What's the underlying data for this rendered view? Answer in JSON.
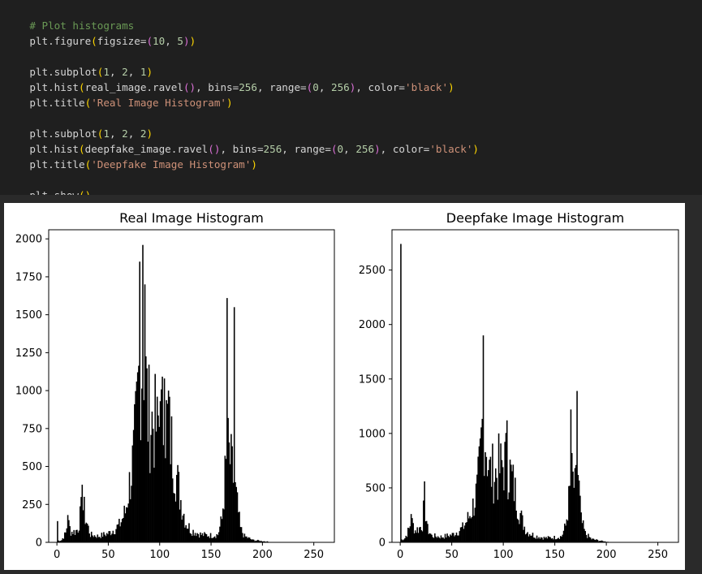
{
  "code": {
    "comment": "# Plot histograms",
    "line_figure": [
      "plt.figure",
      "(",
      "figsize=",
      "(",
      "10",
      ", ",
      "5",
      ")",
      ")"
    ],
    "line_subplot1": [
      "plt.subplot",
      "(",
      "1",
      ", ",
      "2",
      ", ",
      "1",
      ")"
    ],
    "line_hist1": [
      "plt.hist",
      "(",
      "real_image.ravel",
      "(",
      ")",
      ", bins=",
      "256",
      ", range=",
      "(",
      "0",
      ", ",
      "256",
      ")",
      ", color=",
      "'black'",
      ")"
    ],
    "line_title1": [
      "plt.title",
      "(",
      "'Real Image Histogram'",
      ")"
    ],
    "line_subplot2": [
      "plt.subplot",
      "(",
      "1",
      ", ",
      "2",
      ", ",
      "2",
      ")"
    ],
    "line_hist2": [
      "plt.hist",
      "(",
      "deepfake_image.ravel",
      "(",
      ")",
      ", bins=",
      "256",
      ", range=",
      "(",
      "0",
      ", ",
      "256",
      ")",
      ", color=",
      "'black'",
      ")"
    ],
    "line_title2": [
      "plt.title",
      "(",
      "'Deepfake Image Histogram'",
      ")"
    ],
    "line_show": [
      "plt.show",
      "(",
      ")"
    ]
  },
  "colors": {
    "editor_bg": "#1f1f1f",
    "comment": "#6a9955",
    "number": "#b5cea8",
    "string": "#ce9178",
    "bracket": "#ffd700",
    "bracket_nested": "#da70d6",
    "bar": "#000000"
  },
  "chart_data": [
    {
      "type": "bar",
      "title": "Real Image Histogram",
      "xlabel": "",
      "ylabel": "",
      "xlim": [
        -8,
        270
      ],
      "ylim": [
        0,
        2060
      ],
      "xticks": [
        0,
        50,
        100,
        150,
        200,
        250
      ],
      "yticks": [
        0,
        250,
        500,
        750,
        1000,
        1250,
        1500,
        1750,
        2000
      ],
      "bins": 256,
      "bin_range": [
        0,
        256
      ],
      "peaks": [
        [
          0,
          140
        ],
        [
          10,
          180
        ],
        [
          24,
          380
        ],
        [
          26,
          300
        ],
        [
          80,
          1850
        ],
        [
          83,
          1960
        ],
        [
          85,
          1700
        ],
        [
          97,
          960
        ],
        [
          100,
          930
        ],
        [
          104,
          1080
        ],
        [
          108,
          1000
        ],
        [
          165,
          1610
        ],
        [
          172,
          1550
        ]
      ],
      "envelope": [
        [
          0,
          10
        ],
        [
          4,
          15
        ],
        [
          8,
          60
        ],
        [
          10,
          140
        ],
        [
          13,
          70
        ],
        [
          17,
          70
        ],
        [
          20,
          90
        ],
        [
          24,
          250
        ],
        [
          28,
          140
        ],
        [
          32,
          50
        ],
        [
          40,
          40
        ],
        [
          50,
          60
        ],
        [
          60,
          110
        ],
        [
          66,
          200
        ],
        [
          70,
          380
        ],
        [
          74,
          560
        ],
        [
          77,
          800
        ],
        [
          80,
          1150
        ],
        [
          84,
          1260
        ],
        [
          88,
          840
        ],
        [
          92,
          800
        ],
        [
          96,
          760
        ],
        [
          100,
          790
        ],
        [
          104,
          820
        ],
        [
          108,
          760
        ],
        [
          112,
          600
        ],
        [
          116,
          430
        ],
        [
          120,
          280
        ],
        [
          125,
          130
        ],
        [
          130,
          80
        ],
        [
          140,
          50
        ],
        [
          150,
          45
        ],
        [
          156,
          50
        ],
        [
          160,
          150
        ],
        [
          163,
          420
        ],
        [
          166,
          600
        ],
        [
          170,
          470
        ],
        [
          174,
          290
        ],
        [
          178,
          90
        ],
        [
          182,
          40
        ],
        [
          190,
          15
        ],
        [
          200,
          8
        ],
        [
          210,
          0
        ],
        [
          255,
          0
        ]
      ]
    },
    {
      "type": "bar",
      "title": "Deepfake Image Histogram",
      "xlabel": "",
      "ylabel": "",
      "xlim": [
        -8,
        270
      ],
      "ylim": [
        0,
        2870
      ],
      "xticks": [
        0,
        50,
        100,
        150,
        200,
        250
      ],
      "yticks": [
        0,
        500,
        1000,
        1500,
        2000,
        2500
      ],
      "bins": 256,
      "bin_range": [
        0,
        256
      ],
      "peaks": [
        [
          0,
          2740
        ],
        [
          10,
          260
        ],
        [
          23,
          560
        ],
        [
          80,
          1900
        ],
        [
          95,
          1000
        ],
        [
          103,
          1120
        ],
        [
          165,
          1220
        ],
        [
          171,
          1390
        ]
      ],
      "envelope": [
        [
          0,
          20
        ],
        [
          4,
          40
        ],
        [
          8,
          120
        ],
        [
          10,
          200
        ],
        [
          14,
          110
        ],
        [
          18,
          130
        ],
        [
          21,
          170
        ],
        [
          23,
          380
        ],
        [
          26,
          120
        ],
        [
          30,
          60
        ],
        [
          40,
          50
        ],
        [
          50,
          70
        ],
        [
          60,
          130
        ],
        [
          66,
          230
        ],
        [
          70,
          330
        ],
        [
          74,
          470
        ],
        [
          77,
          720
        ],
        [
          80,
          1150
        ],
        [
          83,
          900
        ],
        [
          86,
          650
        ],
        [
          90,
          640
        ],
        [
          94,
          620
        ],
        [
          98,
          700
        ],
        [
          102,
          740
        ],
        [
          106,
          640
        ],
        [
          110,
          500
        ],
        [
          114,
          330
        ],
        [
          118,
          190
        ],
        [
          122,
          100
        ],
        [
          130,
          60
        ],
        [
          140,
          40
        ],
        [
          150,
          45
        ],
        [
          156,
          55
        ],
        [
          160,
          150
        ],
        [
          163,
          380
        ],
        [
          166,
          600
        ],
        [
          169,
          480
        ],
        [
          172,
          620
        ],
        [
          175,
          200
        ],
        [
          179,
          80
        ],
        [
          185,
          30
        ],
        [
          195,
          12
        ],
        [
          205,
          0
        ],
        [
          255,
          0
        ]
      ]
    }
  ]
}
